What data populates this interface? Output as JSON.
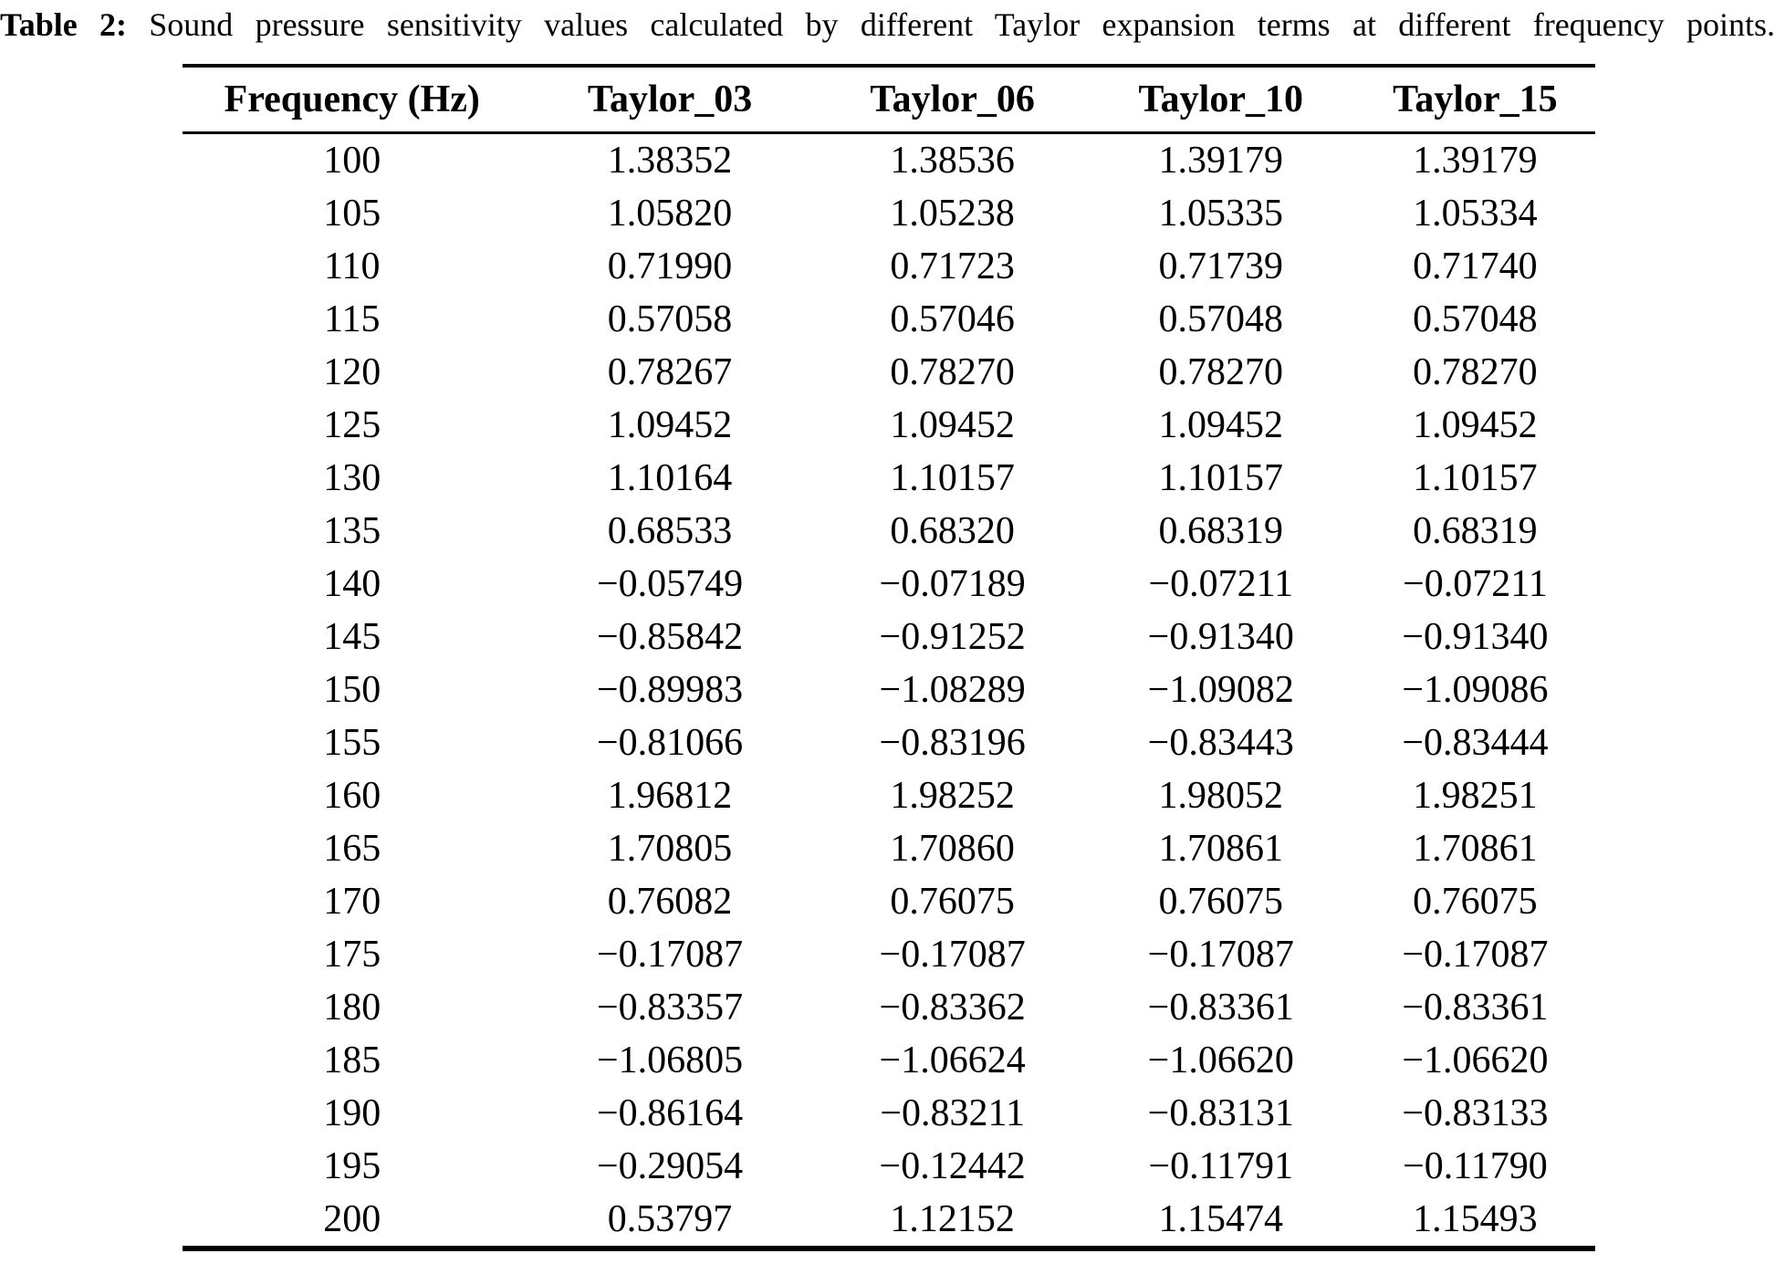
{
  "caption": {
    "label": "Table 2:",
    "text": "Sound pressure sensitivity values calculated by different Taylor expansion terms at different frequency points."
  },
  "table": {
    "columns": [
      "Frequency (Hz)",
      "Taylor_03",
      "Taylor_06",
      "Taylor_10",
      "Taylor_15"
    ],
    "rows": [
      [
        "100",
        "1.38352",
        "1.38536",
        "1.39179",
        "1.39179"
      ],
      [
        "105",
        "1.05820",
        "1.05238",
        "1.05335",
        "1.05334"
      ],
      [
        "110",
        "0.71990",
        "0.71723",
        "0.71739",
        "0.71740"
      ],
      [
        "115",
        "0.57058",
        "0.57046",
        "0.57048",
        "0.57048"
      ],
      [
        "120",
        "0.78267",
        "0.78270",
        "0.78270",
        "0.78270"
      ],
      [
        "125",
        "1.09452",
        "1.09452",
        "1.09452",
        "1.09452"
      ],
      [
        "130",
        "1.10164",
        "1.10157",
        "1.10157",
        "1.10157"
      ],
      [
        "135",
        "0.68533",
        "0.68320",
        "0.68319",
        "0.68319"
      ],
      [
        "140",
        "−0.05749",
        "−0.07189",
        "−0.07211",
        "−0.07211"
      ],
      [
        "145",
        "−0.85842",
        "−0.91252",
        "−0.91340",
        "−0.91340"
      ],
      [
        "150",
        "−0.89983",
        "−1.08289",
        "−1.09082",
        "−1.09086"
      ],
      [
        "155",
        "−0.81066",
        "−0.83196",
        "−0.83443",
        "−0.83444"
      ],
      [
        "160",
        "1.96812",
        "1.98252",
        "1.98052",
        "1.98251"
      ],
      [
        "165",
        "1.70805",
        "1.70860",
        "1.70861",
        "1.70861"
      ],
      [
        "170",
        "0.76082",
        "0.76075",
        "0.76075",
        "0.76075"
      ],
      [
        "175",
        "−0.17087",
        "−0.17087",
        "−0.17087",
        "−0.17087"
      ],
      [
        "180",
        "−0.83357",
        "−0.83362",
        "−0.83361",
        "−0.83361"
      ],
      [
        "185",
        "−1.06805",
        "−1.06624",
        "−1.06620",
        "−1.06620"
      ],
      [
        "190",
        "−0.86164",
        "−0.83211",
        "−0.83131",
        "−0.83133"
      ],
      [
        "195",
        "−0.29054",
        "−0.12442",
        "−0.11791",
        "−0.11790"
      ],
      [
        "200",
        "0.53797",
        "1.12152",
        "1.15474",
        "1.15493"
      ]
    ]
  },
  "chart_data": {
    "type": "table",
    "title": "Table 2: Sound pressure sensitivity values calculated by different Taylor expansion terms at different frequency points.",
    "columns": [
      "Frequency (Hz)",
      "Taylor_03",
      "Taylor_06",
      "Taylor_10",
      "Taylor_15"
    ],
    "x": [
      100,
      105,
      110,
      115,
      120,
      125,
      130,
      135,
      140,
      145,
      150,
      155,
      160,
      165,
      170,
      175,
      180,
      185,
      190,
      195,
      200
    ],
    "series": [
      {
        "name": "Taylor_03",
        "values": [
          1.38352,
          1.0582,
          0.7199,
          0.57058,
          0.78267,
          1.09452,
          1.10164,
          0.68533,
          -0.05749,
          -0.85842,
          -0.89983,
          -0.81066,
          1.96812,
          1.70805,
          0.76082,
          -0.17087,
          -0.83357,
          -1.06805,
          -0.86164,
          -0.29054,
          0.53797
        ]
      },
      {
        "name": "Taylor_06",
        "values": [
          1.38536,
          1.05238,
          0.71723,
          0.57046,
          0.7827,
          1.09452,
          1.10157,
          0.6832,
          -0.07189,
          -0.91252,
          -1.08289,
          -0.83196,
          1.98252,
          1.7086,
          0.76075,
          -0.17087,
          -0.83362,
          -1.06624,
          -0.83211,
          -0.12442,
          1.12152
        ]
      },
      {
        "name": "Taylor_10",
        "values": [
          1.39179,
          1.05335,
          0.71739,
          0.57048,
          0.7827,
          1.09452,
          1.10157,
          0.68319,
          -0.07211,
          -0.9134,
          -1.09082,
          -0.83443,
          1.98052,
          1.70861,
          0.76075,
          -0.17087,
          -0.83361,
          -1.0662,
          -0.83131,
          -0.11791,
          1.15474
        ]
      },
      {
        "name": "Taylor_15",
        "values": [
          1.39179,
          1.05334,
          0.7174,
          0.57048,
          0.7827,
          1.09452,
          1.10157,
          0.68319,
          -0.07211,
          -0.9134,
          -1.09086,
          -0.83444,
          1.98251,
          1.70861,
          0.76075,
          -0.17087,
          -0.83361,
          -1.0662,
          -0.83133,
          -0.1179,
          1.15493
        ]
      }
    ]
  }
}
